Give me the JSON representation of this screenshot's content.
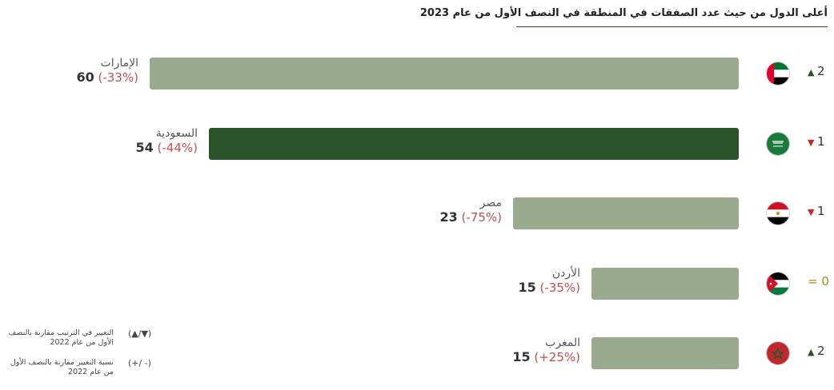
{
  "chart_data": {
    "type": "bar",
    "orientation": "horizontal",
    "title": "أعلى الدول من حيث عدد الصفقات في المنطقة في النصف الأول من عام 2023",
    "categories": [
      "الإمارات",
      "السعودية",
      "مصر",
      "الأردن",
      "المغرب"
    ],
    "values": [
      60,
      54,
      23,
      15,
      15
    ],
    "change_pct": [
      "(-33%)",
      "(-44%)",
      "(-75%)",
      "(-35%)",
      "(+25%)"
    ],
    "rank_change": [
      {
        "direction": "up",
        "symbol": "▲",
        "value": "2"
      },
      {
        "direction": "down",
        "symbol": "▼",
        "value": "1"
      },
      {
        "direction": "down",
        "symbol": "▼",
        "value": "1"
      },
      {
        "direction": "same",
        "symbol": "=",
        "value": "0"
      },
      {
        "direction": "up",
        "symbol": "▲",
        "value": "2"
      }
    ],
    "flags": [
      "uae-flag-icon",
      "saudi-flag-icon",
      "egypt-flag-icon",
      "jordan-flag-icon",
      "morocco-flag-icon"
    ],
    "highlight_index": 1,
    "xlim": [
      0,
      60
    ],
    "colors": {
      "bar": "#99aa8e",
      "highlight": "#2b5329",
      "up": "#2b5329",
      "down": "#c62828",
      "same": "#a88a2a",
      "pct": "#c0504d"
    }
  },
  "legend": [
    {
      "symbol": "(▲/▼)",
      "text": "التغيير في الترتيب مقارنة بالنصف الأول من عام 2022"
    },
    {
      "symbol": "(+/ -)",
      "text": "نسبة التغيير مقارنة بالنصف الأول من عام 2022"
    }
  ]
}
